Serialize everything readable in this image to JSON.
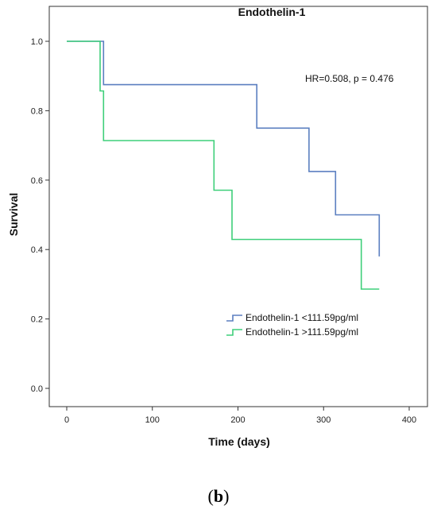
{
  "chart_data": {
    "type": "line",
    "title": "Endothelin-1",
    "xlabel": "Time (days)",
    "ylabel": "Survival",
    "xlim": [
      0,
      420
    ],
    "ylim": [
      0,
      1.0
    ],
    "x_ticks": [
      0,
      100,
      200,
      300,
      400
    ],
    "y_ticks": [
      "0.0",
      "0.2",
      "0.4",
      "0.6",
      "0.8",
      "1.0"
    ],
    "annotation": "HR=0.508, p = 0.476",
    "legend_position": "center-right",
    "series": [
      {
        "name": "Endothelin-1 <111.59pg/ml",
        "color": "#5b7fc0",
        "step_points": [
          [
            0,
            1.0
          ],
          [
            43,
            1.0
          ],
          [
            43,
            0.875
          ],
          [
            222,
            0.875
          ],
          [
            222,
            0.75
          ],
          [
            283,
            0.75
          ],
          [
            283,
            0.625
          ],
          [
            314,
            0.625
          ],
          [
            314,
            0.5
          ],
          [
            365,
            0.5
          ],
          [
            365,
            0.38
          ]
        ]
      },
      {
        "name": "Endothelin-1 >111.59pg/ml",
        "color": "#3fcf7a",
        "step_points": [
          [
            0,
            1.0
          ],
          [
            39,
            1.0
          ],
          [
            39,
            0.857
          ],
          [
            43,
            0.857
          ],
          [
            43,
            0.714
          ],
          [
            172,
            0.714
          ],
          [
            172,
            0.571
          ],
          [
            193,
            0.571
          ],
          [
            193,
            0.429
          ],
          [
            344,
            0.429
          ],
          [
            344,
            0.286
          ],
          [
            365,
            0.286
          ]
        ]
      }
    ]
  },
  "caption": {
    "open": "(",
    "letter": "b",
    "close": ")"
  }
}
